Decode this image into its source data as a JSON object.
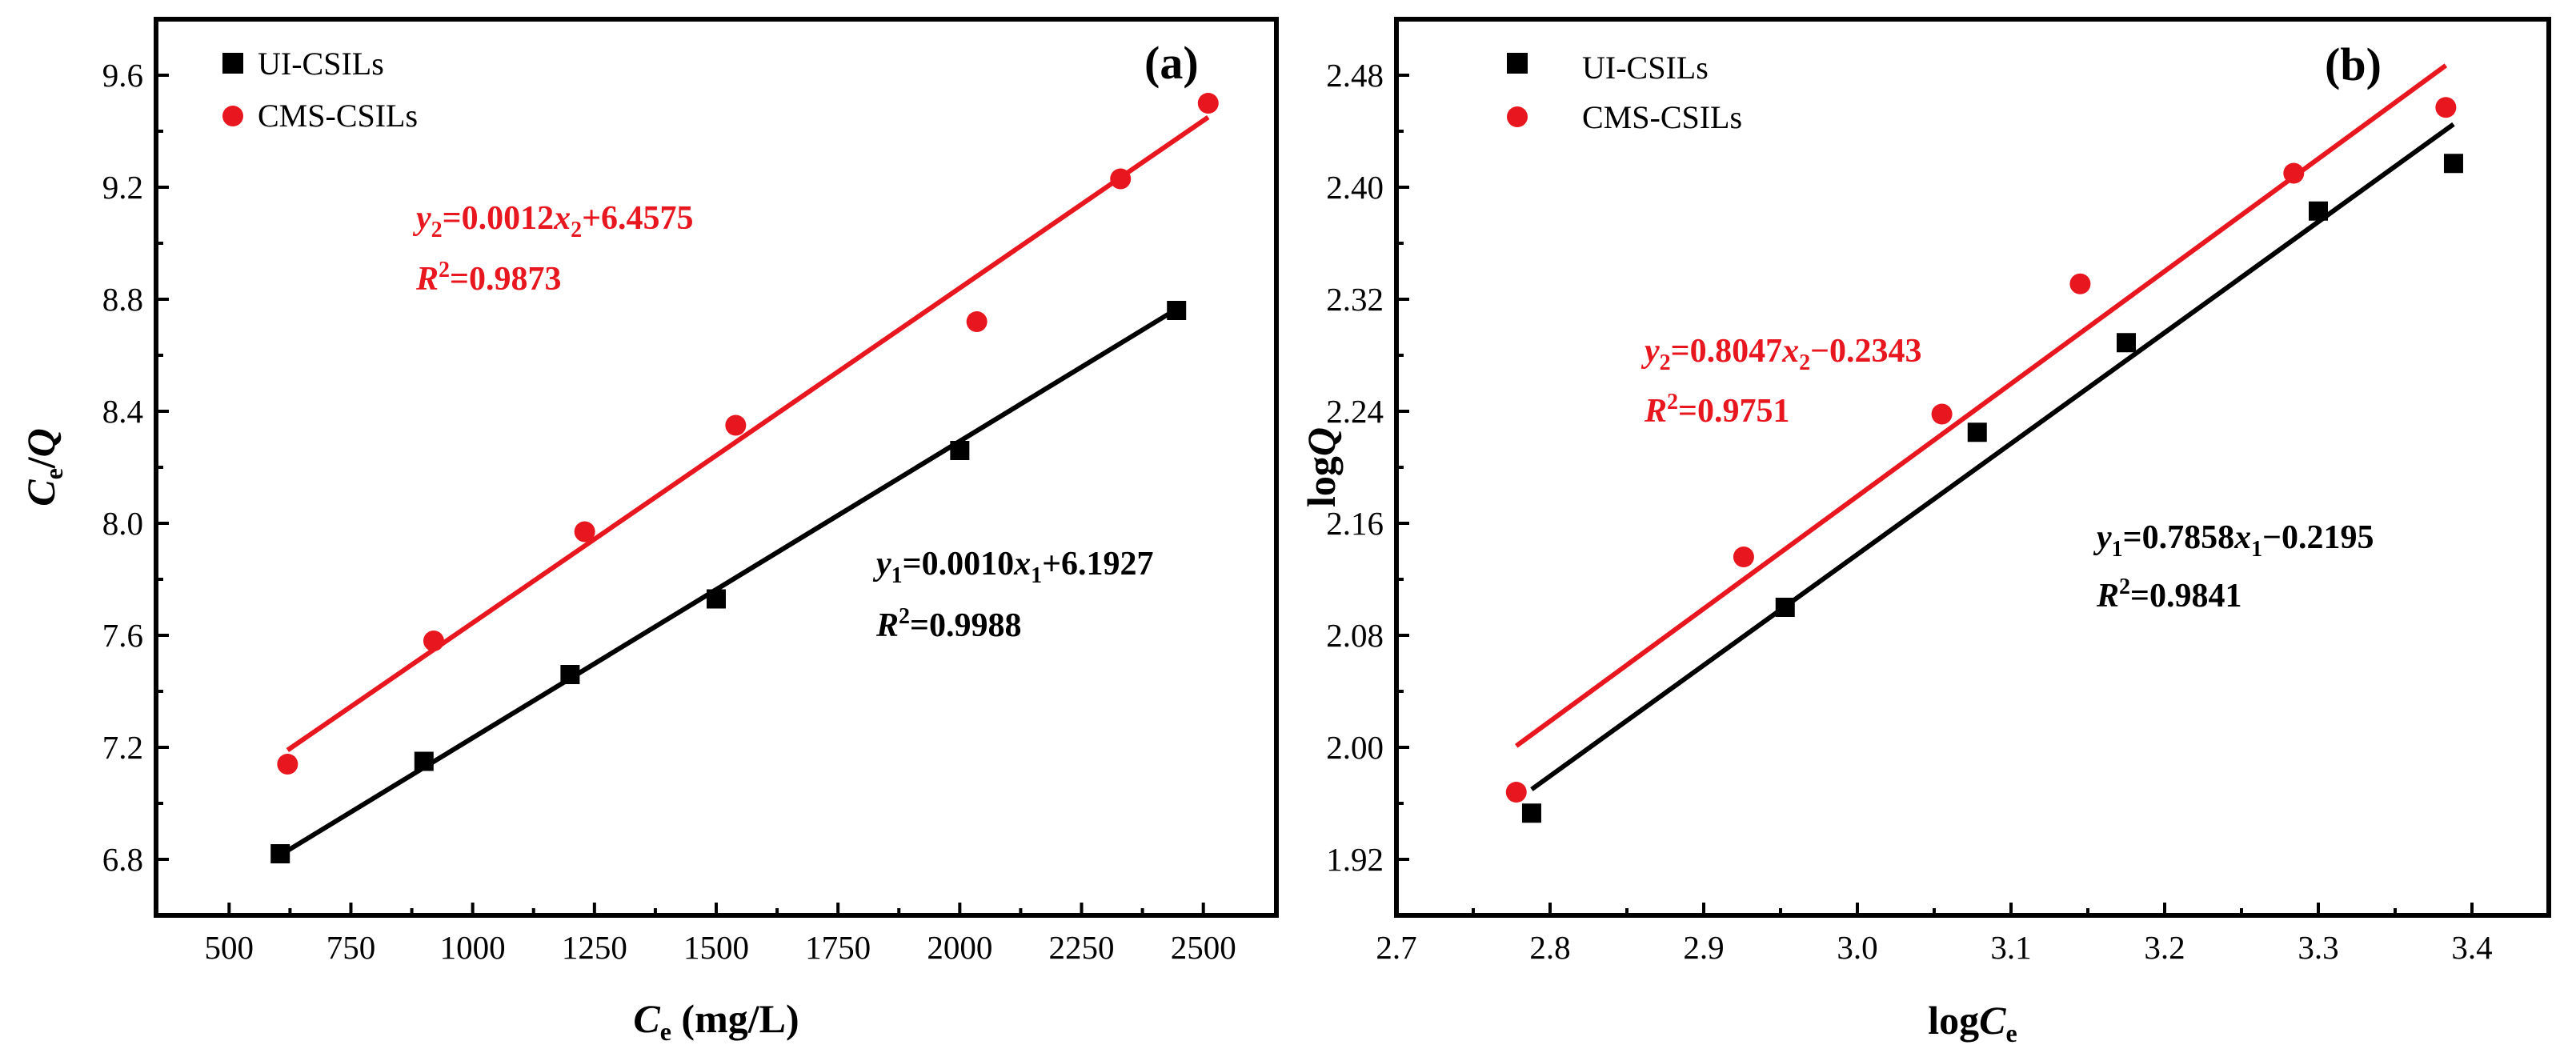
{
  "chart_data": [
    {
      "type": "scatter",
      "panel_label": "(a)",
      "xlabel": {
        "main": "C",
        "sub": "e",
        "unit": " (mg/L)"
      },
      "ylabel": {
        "a": "C",
        "sub": "e",
        "slash": "/",
        "b": "Q"
      },
      "xlim": [
        350,
        2650
      ],
      "ylim": [
        6.6,
        9.8
      ],
      "xticks": [
        500,
        750,
        1000,
        1250,
        1500,
        1750,
        2000,
        2250,
        2500
      ],
      "xtick_labels": [
        "500",
        "750",
        "1000",
        "1250",
        "1500",
        "1750",
        "2000",
        "2250",
        "2500"
      ],
      "yticks": [
        6.8,
        7.2,
        7.6,
        8.0,
        8.4,
        8.8,
        9.2,
        9.6
      ],
      "ytick_labels": [
        "6.8",
        "7.2",
        "7.6",
        "8.0",
        "8.4",
        "8.8",
        "9.2",
        "9.6"
      ],
      "legend_position": "top-left",
      "series": [
        {
          "name": "UI-CSILs",
          "marker": "square",
          "color": "#000000",
          "x": [
            605,
            900,
            1200,
            1500,
            2000,
            2445
          ],
          "y": [
            6.82,
            7.15,
            7.46,
            7.73,
            8.26,
            8.76
          ],
          "fit": {
            "x": [
              600,
              2450
            ],
            "y": [
              6.81,
              8.77
            ]
          },
          "equation": {
            "y": "y",
            "ysub": "1",
            "eq": "=0.0010",
            "x": "x",
            "xsub": "1",
            "rest": "+6.1927"
          },
          "r2": {
            "r": "R",
            "sup": "2",
            "value": "=0.9988"
          }
        },
        {
          "name": "CMS-CSILs",
          "marker": "circle",
          "color": "#e8171f",
          "x": [
            620,
            920,
            1230,
            1540,
            2035,
            2330,
            2510
          ],
          "y": [
            7.14,
            7.58,
            7.97,
            8.35,
            8.72,
            9.23,
            9.5
          ],
          "fit": {
            "x": [
              620,
              2510
            ],
            "y": [
              7.19,
              9.45
            ]
          },
          "equation": {
            "y": "y",
            "ysub": "2",
            "eq": "=0.0012",
            "x": "x",
            "xsub": "2",
            "rest": "+6.4575"
          },
          "r2": {
            "r": "R",
            "sup": "2",
            "value": "=0.9873"
          }
        }
      ]
    },
    {
      "type": "scatter",
      "panel_label": "(b)",
      "xlabel": {
        "main": "log",
        "it": "C",
        "sub": "e"
      },
      "ylabel": {
        "main": "log",
        "it": "Q"
      },
      "xlim": [
        2.7,
        3.45
      ],
      "ylim": [
        1.88,
        2.52
      ],
      "xticks": [
        2.7,
        2.8,
        2.9,
        3.0,
        3.1,
        3.2,
        3.3,
        3.4
      ],
      "xtick_labels": [
        "2.7",
        "2.8",
        "2.9",
        "3.0",
        "3.1",
        "3.2",
        "3.3",
        "3.4"
      ],
      "yticks": [
        1.92,
        2.0,
        2.08,
        2.16,
        2.24,
        2.32,
        2.4,
        2.48
      ],
      "ytick_labels": [
        "1.92",
        "2.00",
        "2.08",
        "2.16",
        "2.24",
        "2.32",
        "2.40",
        "2.48"
      ],
      "legend_position": "top-left",
      "series": [
        {
          "name": "UI-CSILs",
          "marker": "square",
          "color": "#000000",
          "x": [
            2.788,
            2.953,
            3.078,
            3.175,
            3.3,
            3.388
          ],
          "y": [
            1.953,
            2.1,
            2.225,
            2.289,
            2.383,
            2.417
          ],
          "fit": {
            "x": [
              2.788,
              3.388
            ],
            "y": [
              1.97,
              2.445
            ]
          },
          "equation": {
            "y": "y",
            "ysub": "1",
            "eq": "=0.7858",
            "x": "x",
            "xsub": "1",
            "rest": "−0.2195"
          },
          "r2": {
            "r": "R",
            "sup": "2",
            "value": "=0.9841"
          }
        },
        {
          "name": "CMS-CSILs",
          "marker": "circle",
          "color": "#e8171f",
          "x": [
            2.778,
            2.926,
            3.055,
            3.145,
            3.284,
            3.383
          ],
          "y": [
            1.968,
            2.136,
            2.238,
            2.331,
            2.41,
            2.457
          ],
          "fit": {
            "x": [
              2.778,
              3.383
            ],
            "y": [
              2.001,
              2.487
            ]
          },
          "equation": {
            "y": "y",
            "ysub": "2",
            "eq": "=0.8047",
            "x": "x",
            "xsub": "2",
            "rest": "−0.2343"
          },
          "r2": {
            "r": "R",
            "sup": "2",
            "value": "=0.9751"
          }
        }
      ]
    }
  ]
}
